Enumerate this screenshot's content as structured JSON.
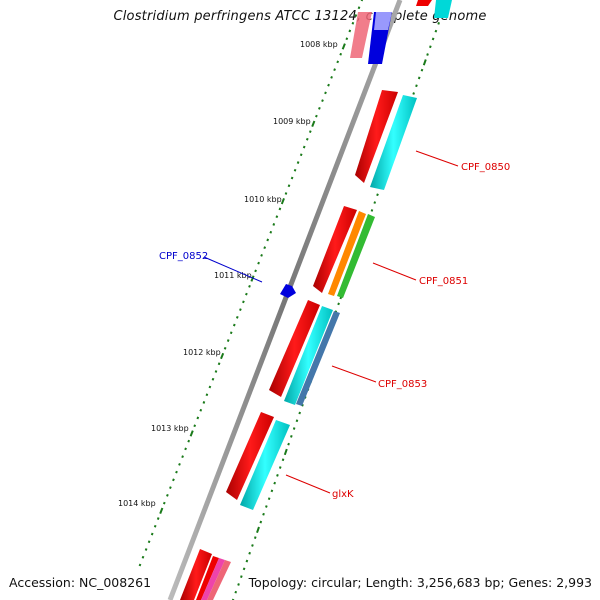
{
  "title": "Clostridium perfringens ATCC 13124, complete genome",
  "footer": {
    "accession": "Accession: NC_008261",
    "summary": "Topology: circular; Length: 3,256,683 bp; Genes: 2,993"
  },
  "kbp_labels": [
    "1008 kbp",
    "1009 kbp",
    "1010 kbp",
    "1011 kbp",
    "1012 kbp",
    "1013 kbp",
    "1014 kbp"
  ],
  "gene_labels": [
    {
      "name": "CPF_0850",
      "color": "#dd0000"
    },
    {
      "name": "CPF_0852",
      "color": "#0000cc"
    },
    {
      "name": "CPF_0851",
      "color": "#dd0000"
    },
    {
      "name": "CPF_0853",
      "color": "#dd0000"
    },
    {
      "name": "glxK",
      "color": "#dd0000"
    }
  ],
  "colors": {
    "backbone": "#8c8c8c",
    "tick": "#1a7a1a",
    "red": "#ee0000",
    "cyan": "#00d8d8",
    "orange": "#ff8800",
    "green": "#33bb33",
    "steelblue": "#4477aa",
    "blue": "#0000dd",
    "pink": "#ee6677",
    "lightblue": "#aaaaff"
  }
}
